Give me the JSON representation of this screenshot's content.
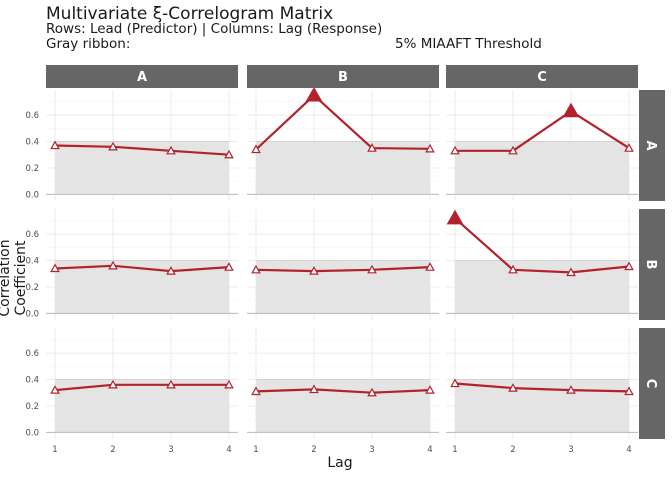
{
  "title": "Multivariate ξ-Correlogram Matrix",
  "subtitle_line1": "Rows: Lead (Predictor)  |  Columns: Lag (Response)",
  "subtitle_line2_left": "Gray ribbon:",
  "subtitle_line2_right": "5% MIAAFT Threshold",
  "chart_data": {
    "type": "line",
    "xlabel": "Lag",
    "ylabel": "Correlation Coefficient",
    "x": [
      1,
      2,
      3,
      4
    ],
    "x_ticks": [
      "1",
      "2",
      "3",
      "4"
    ],
    "y_ticks": [
      "0.0",
      "0.2",
      "0.4",
      "0.6"
    ],
    "ylim": [
      -0.02,
      0.76
    ],
    "column_strips": [
      "A",
      "B",
      "C"
    ],
    "row_strips": [
      "A",
      "B",
      "C"
    ],
    "colors": {
      "line": "#b2222b",
      "ribbon": "#e4e4e4",
      "strip": "#666666",
      "strip_text": "#ffffff",
      "grid": "#ebebeb"
    },
    "panels": [
      {
        "row": "A",
        "col": "A",
        "values": [
          0.37,
          0.36,
          0.33,
          0.3
        ],
        "threshold": 0.4,
        "significant": [
          false,
          false,
          false,
          false
        ]
      },
      {
        "row": "A",
        "col": "B",
        "values": [
          0.34,
          0.75,
          0.35,
          0.345
        ],
        "threshold": 0.4,
        "significant": [
          false,
          true,
          false,
          false
        ]
      },
      {
        "row": "A",
        "col": "C",
        "values": [
          0.33,
          0.33,
          0.63,
          0.35
        ],
        "threshold": 0.4,
        "significant": [
          false,
          false,
          true,
          false
        ]
      },
      {
        "row": "B",
        "col": "A",
        "values": [
          0.34,
          0.36,
          0.32,
          0.35
        ],
        "threshold": 0.4,
        "significant": [
          false,
          false,
          false,
          false
        ]
      },
      {
        "row": "B",
        "col": "B",
        "values": [
          0.33,
          0.32,
          0.33,
          0.35
        ],
        "threshold": 0.4,
        "significant": [
          false,
          false,
          false,
          false
        ]
      },
      {
        "row": "B",
        "col": "C",
        "values": [
          0.72,
          0.33,
          0.31,
          0.355
        ],
        "threshold": 0.4,
        "significant": [
          true,
          false,
          false,
          false
        ]
      },
      {
        "row": "C",
        "col": "A",
        "values": [
          0.32,
          0.36,
          0.36,
          0.36
        ],
        "threshold": 0.4,
        "significant": [
          false,
          false,
          false,
          false
        ]
      },
      {
        "row": "C",
        "col": "B",
        "values": [
          0.31,
          0.325,
          0.3,
          0.32
        ],
        "threshold": 0.4,
        "significant": [
          false,
          false,
          false,
          false
        ]
      },
      {
        "row": "C",
        "col": "C",
        "values": [
          0.37,
          0.335,
          0.32,
          0.31
        ],
        "threshold": 0.4,
        "significant": [
          false,
          false,
          false,
          false
        ]
      }
    ]
  }
}
